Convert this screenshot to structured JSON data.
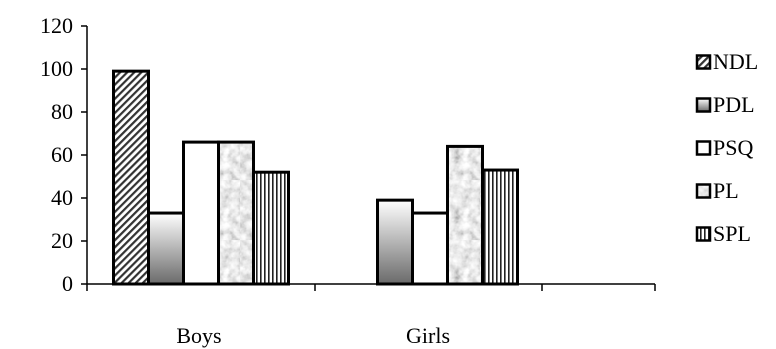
{
  "chart_data": {
    "type": "bar",
    "categories": [
      "Boys",
      "Girls"
    ],
    "series": [
      {
        "name": "NDL",
        "values": [
          99,
          null
        ]
      },
      {
        "name": "PDL",
        "values": [
          33,
          39
        ]
      },
      {
        "name": "PSQ",
        "values": [
          66,
          33
        ]
      },
      {
        "name": "PL",
        "values": [
          66,
          64
        ]
      },
      {
        "name": "SPL",
        "values": [
          52,
          53
        ]
      }
    ],
    "ylim": [
      0,
      120
    ],
    "yticks": [
      0,
      20,
      40,
      60,
      80,
      100,
      120
    ],
    "legend_position": "right",
    "grid": false,
    "title": "",
    "xlabel": "",
    "ylabel": ""
  }
}
